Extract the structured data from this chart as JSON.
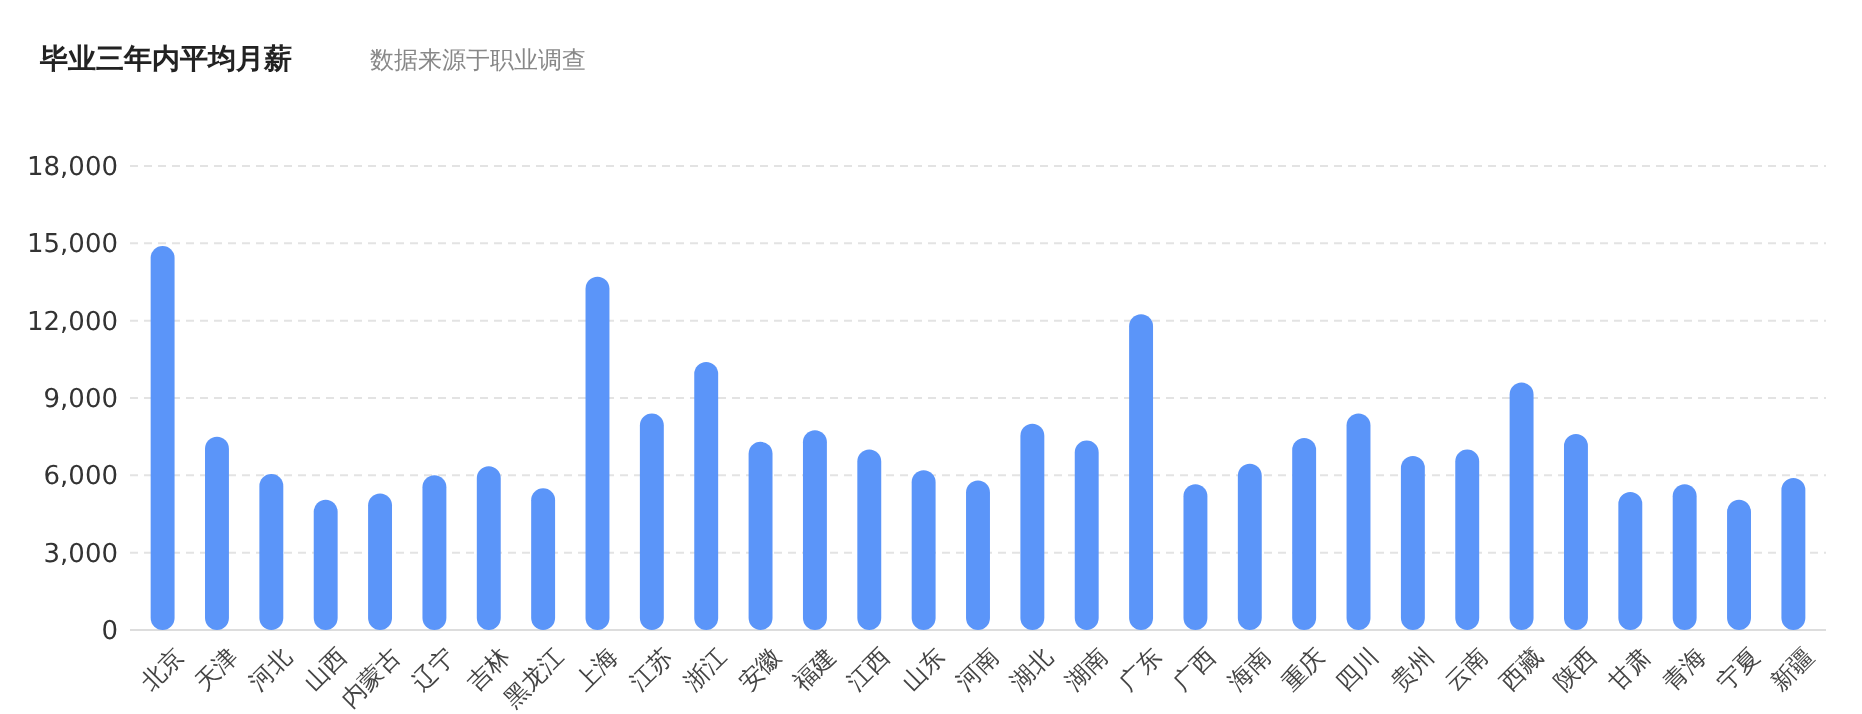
{
  "chart_data": {
    "type": "bar",
    "title": "毕业三年内平均月薪",
    "subtitle": "数据来源于职业调查",
    "categories": [
      "北京",
      "天津",
      "河北",
      "山西",
      "内蒙古",
      "辽宁",
      "吉林",
      "黑龙江",
      "上海",
      "江苏",
      "浙江",
      "安徽",
      "福建",
      "江西",
      "山东",
      "河南",
      "湖北",
      "湖南",
      "广东",
      "广西",
      "海南",
      "重庆",
      "四川",
      "贵州",
      "云南",
      "西藏",
      "陕西",
      "甘肃",
      "青海",
      "宁夏",
      "新疆"
    ],
    "values": [
      14900,
      7500,
      6050,
      5050,
      5300,
      6000,
      6350,
      5500,
      13700,
      8400,
      10400,
      7300,
      7750,
      7000,
      6200,
      5800,
      8000,
      7350,
      12250,
      5650,
      6450,
      7450,
      8400,
      6750,
      7000,
      9600,
      7600,
      5350,
      5650,
      5050,
      5900
    ],
    "color": "#5b95f9",
    "ylim": [
      0,
      18000
    ],
    "yticks": [
      {
        "value": 0,
        "label": "0"
      },
      {
        "value": 3000,
        "label": "3,000"
      },
      {
        "value": 6000,
        "label": "6,000"
      },
      {
        "value": 9000,
        "label": "9,000"
      },
      {
        "value": 12000,
        "label": "12,000"
      },
      {
        "value": 15000,
        "label": "15,000"
      },
      {
        "value": 18000,
        "label": "18,000"
      }
    ],
    "grid": "y"
  }
}
